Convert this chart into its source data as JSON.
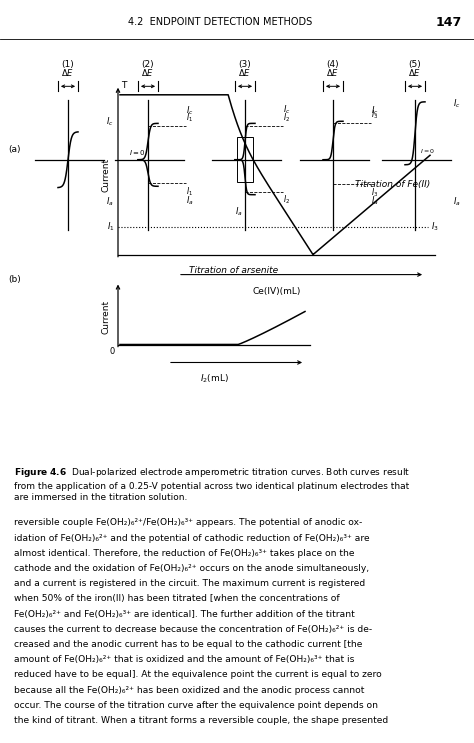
{
  "header_text": "4.2  ENDPOINT DETECTION METHODS",
  "header_page": "147",
  "fig_caption_bold": "Figure 4.6",
  "fig_caption_rest": "  Dual-polarized electrode amperometric titration curves. Both curves result\nfrom the application of a 0.25-V potential across two identical platinum electrodes that\nare immersed in the titration solution.",
  "body_lines": [
    "reversible couple Fe(OH₂)₆²⁺/Fe(OH₂)₆³⁺ appears. The potential of anodic ox-",
    "idation of Fe(OH₂)₆²⁺ and the potential of cathodic reduction of Fe(OH₂)₆³⁺ are",
    "almost identical. Therefore, the reduction of Fe(OH₂)₆³⁺ takes place on the",
    "cathode and the oxidation of Fe(OH₂)₆²⁺ occurs on the anode simultaneously,",
    "and a current is registered in the circuit. The maximum current is registered",
    "when 50% of the iron(II) has been titrated [when the concentrations of",
    "Fe(OH₂)₆²⁺ and Fe(OH₂)₆³⁺ are identical]. The further addition of the titrant",
    "causes the current to decrease because the concentration of Fe(OH₂)₆²⁺ is de-",
    "creased and the anodic current has to be equal to the cathodic current [the",
    "amount of Fe(OH₂)₆²⁺ that is oxidized and the amount of Fe(OH₂)₆³⁺ that is",
    "reduced have to be equal]. At the equivalence point the current is equal to zero",
    "because all the Fe(OH₂)₆²⁺ has been oxidized and the anodic process cannot",
    "occur. The course of the titration curve after the equivalence point depends on",
    "the kind of titrant. When a titrant forms a reversible couple, the shape presented"
  ],
  "bg_color": "#ffffff"
}
